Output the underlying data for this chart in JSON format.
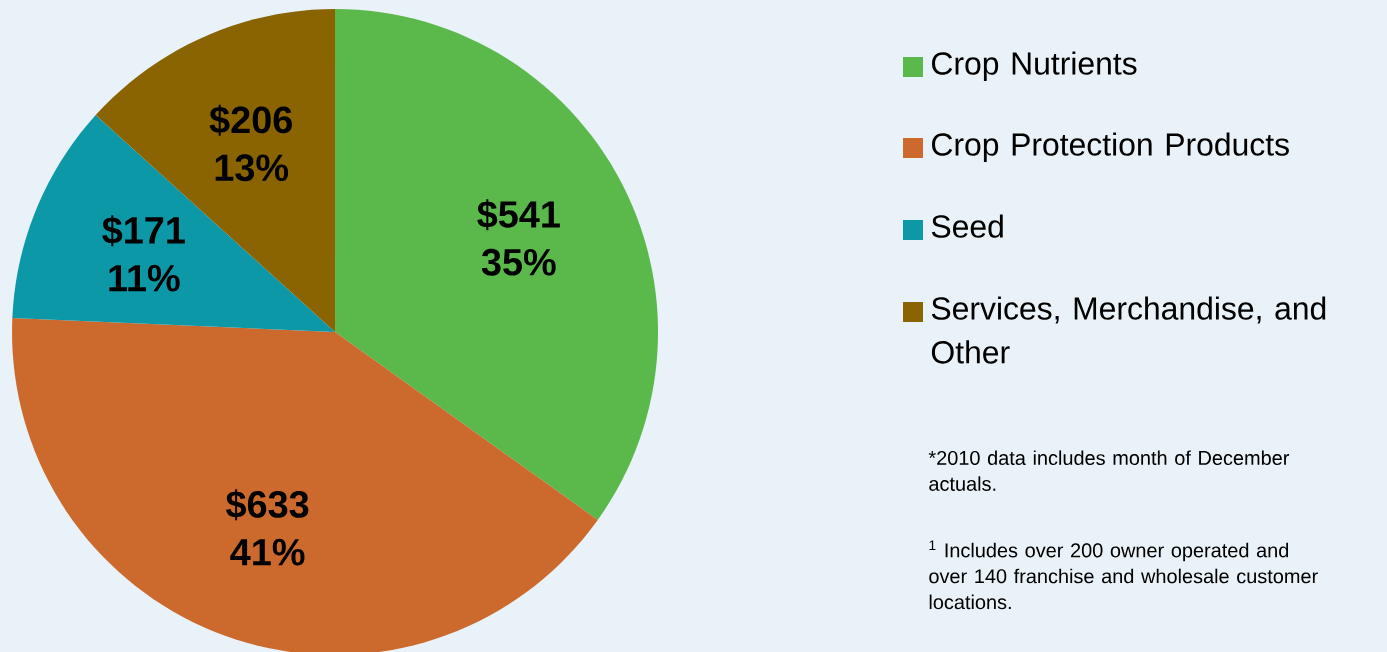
{
  "chart_data": {
    "type": "pie",
    "categories": [
      "Crop Nutrients",
      "Crop Protection Products",
      "Seed",
      "Services, Merchandise, and Other"
    ],
    "values": [
      541,
      633,
      171,
      206
    ],
    "colors": [
      "#5bb94c",
      "#cc6a2e",
      "#0d98a8",
      "#8a6400"
    ],
    "value_labels": [
      "$541 35%",
      "$633 41%",
      "$171 11%",
      "$206 13%"
    ],
    "legend": "right",
    "annotations": [
      "*2010 data includes month of December actuals.",
      "$^{1}$ Includes over 200 owner operated and over 140 franchise and wholesale customer locations."
    ]
  }
}
